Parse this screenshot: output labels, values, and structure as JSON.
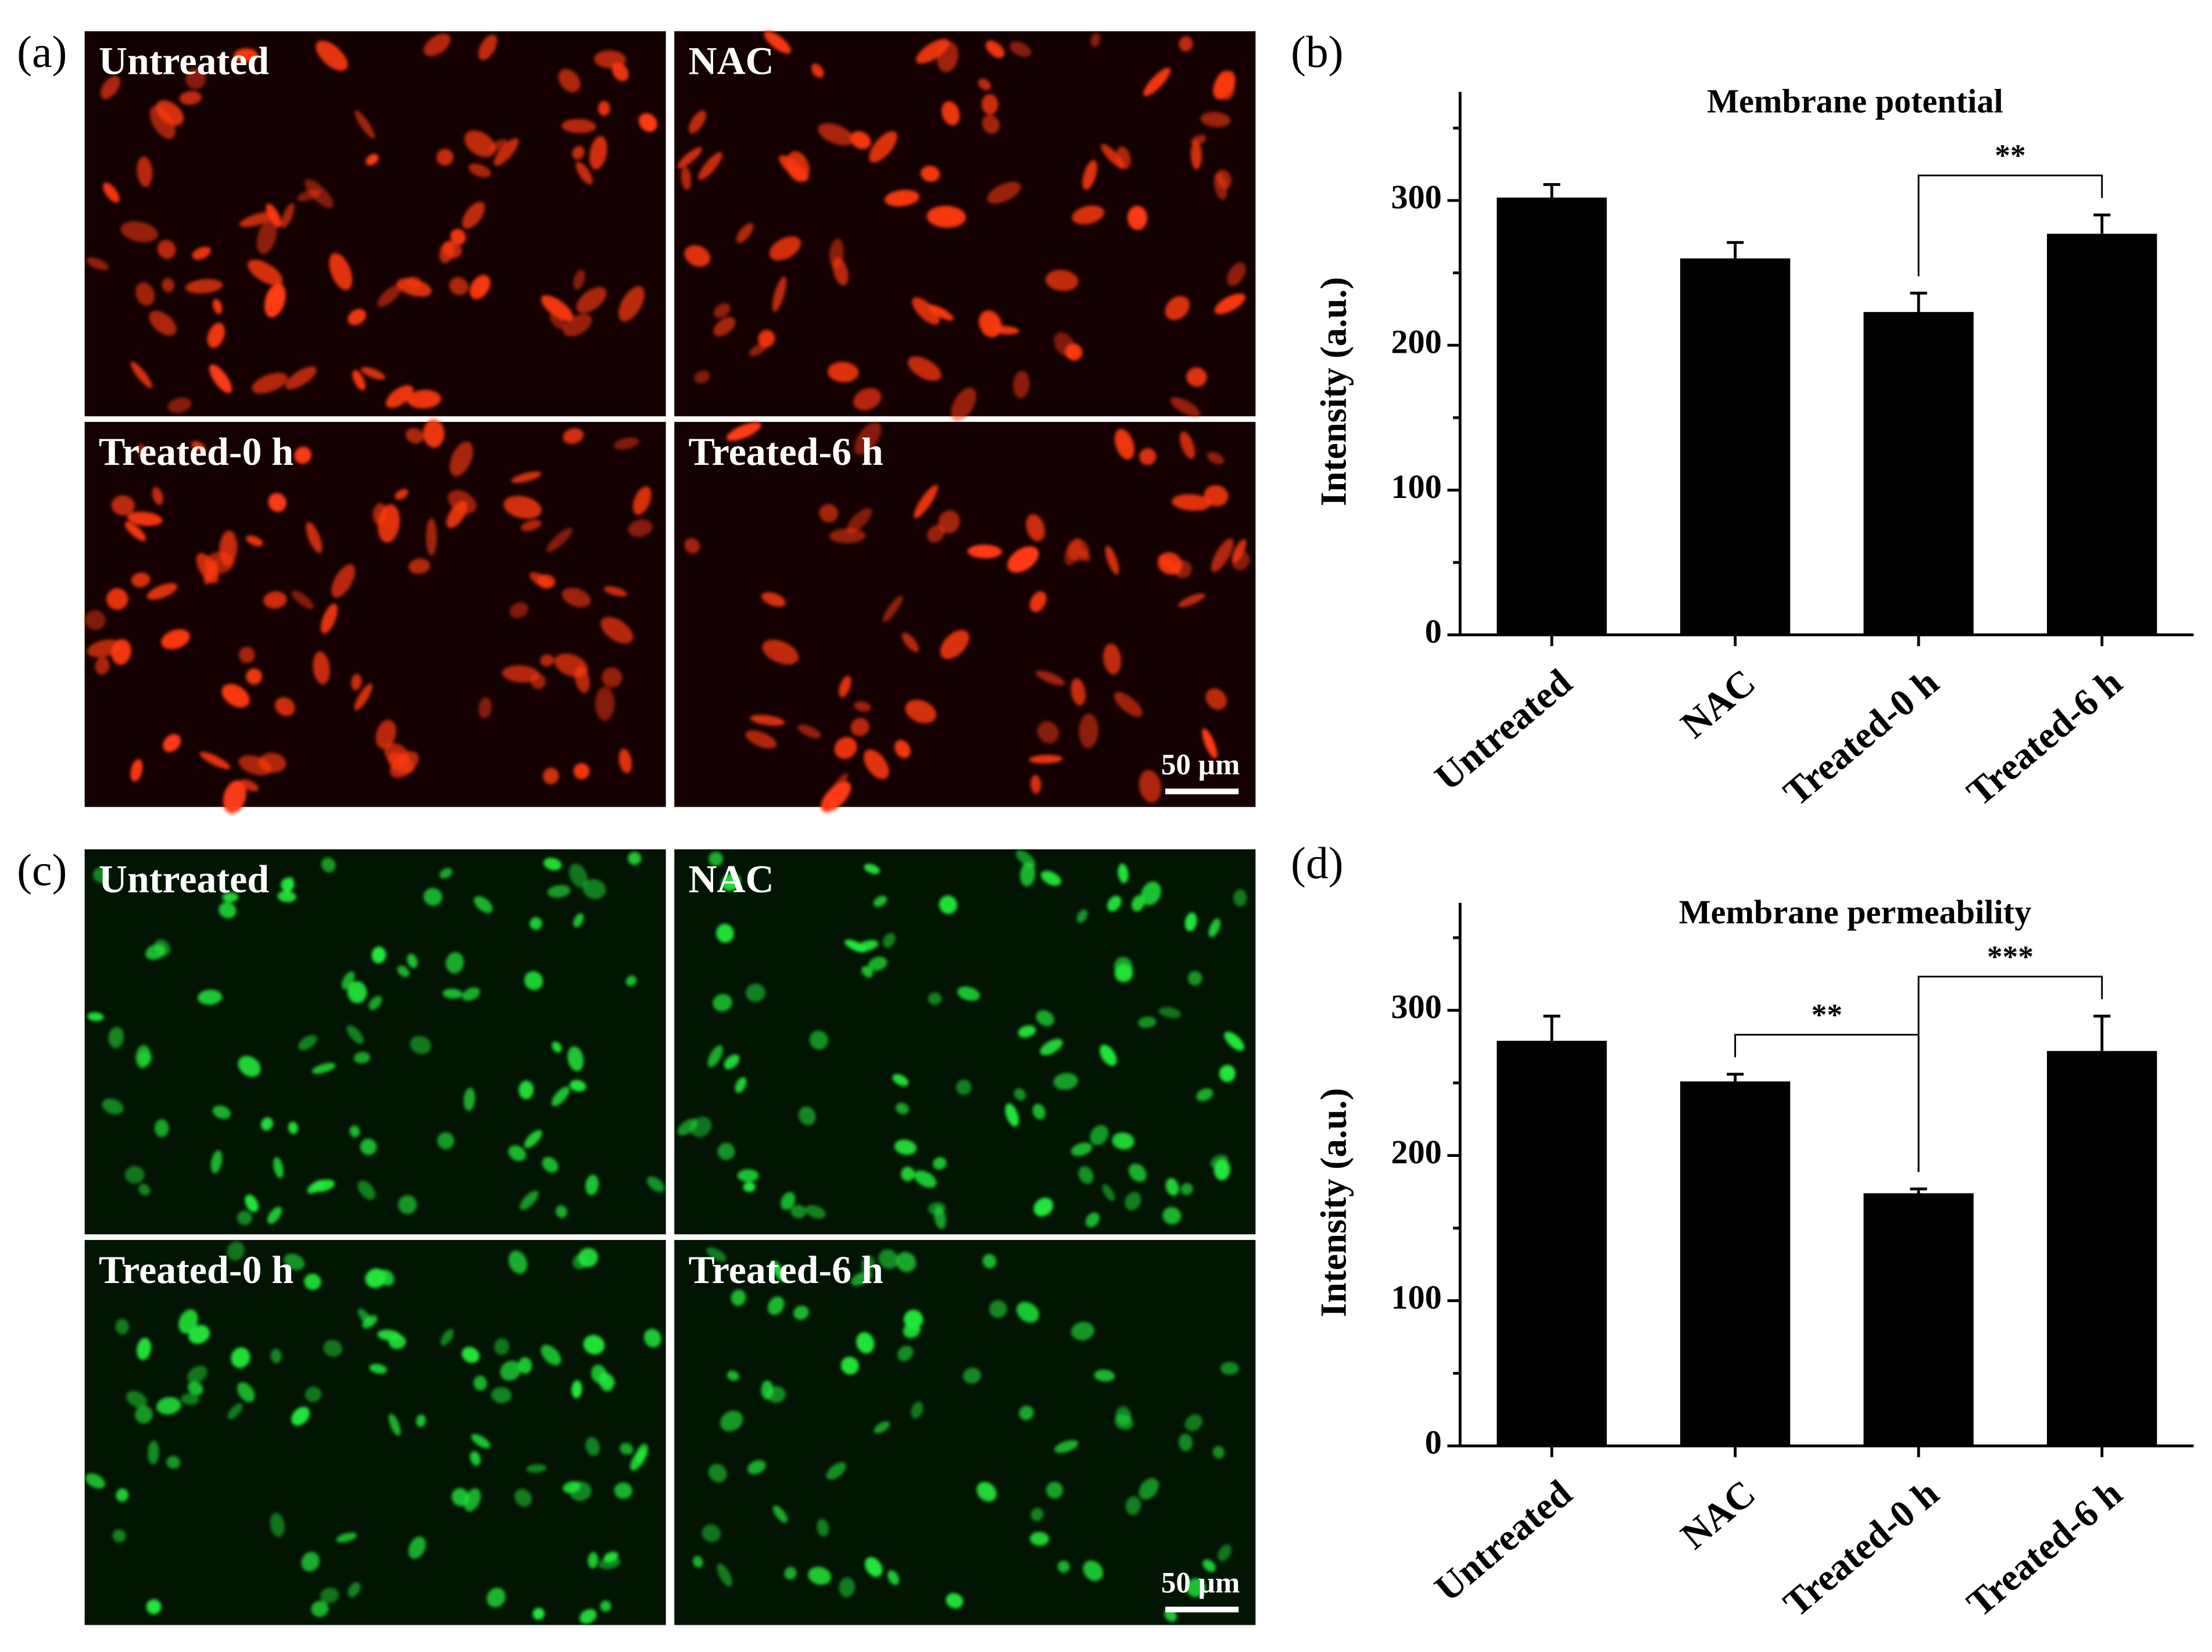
{
  "image_panels": [
    {
      "panel_label": "(a)",
      "color": "#ff3a12",
      "background": "#140000",
      "labels": [
        "Untreated",
        "NAC",
        "Treated-0 h",
        "Treated-6 h"
      ],
      "scale_bar": "50 µm"
    },
    {
      "panel_label": "(c)",
      "color": "#22e83a",
      "background": "#021402",
      "labels": [
        "Untreated",
        "NAC",
        "Treated-0 h",
        "Treated-6 h"
      ],
      "scale_bar": "50 µm"
    }
  ],
  "chart_data": [
    {
      "type": "bar",
      "panel_label": "(b)",
      "title": "Membrane potential",
      "y_label": "Intensity (a.u.)",
      "categories": [
        "Untreated",
        "NAC",
        "Treated-0 h",
        "Treated-6 h"
      ],
      "values": [
        302,
        260,
        223,
        277
      ],
      "errors": [
        9,
        11,
        13,
        13
      ],
      "color": "#000000",
      "ylim": [
        0,
        375
      ],
      "yticks": [
        0,
        100,
        200,
        300
      ],
      "yminor_ticks": [
        50,
        150,
        250,
        350
      ],
      "significance": [
        {
          "between": [
            "Treated-0 h",
            "Treated-6 h"
          ],
          "label": "**"
        }
      ]
    },
    {
      "type": "bar",
      "panel_label": "(d)",
      "title": "Membrane permeability",
      "y_label": "Intensity (a.u.)",
      "categories": [
        "Untreated",
        "NAC",
        "Treated-0 h",
        "Treated-6 h"
      ],
      "values": [
        279,
        251,
        174,
        272
      ],
      "errors": [
        17,
        5,
        3,
        24
      ],
      "color": "#000000",
      "ylim": [
        0,
        374
      ],
      "yticks": [
        0,
        100,
        200,
        300
      ],
      "yminor_ticks": [
        50,
        150,
        250,
        350
      ],
      "significance": [
        {
          "between": [
            "NAC",
            "Treated-0 h"
          ],
          "label": "**"
        },
        {
          "between": [
            "Treated-0 h",
            "Treated-6 h"
          ],
          "label": "***"
        }
      ]
    }
  ]
}
